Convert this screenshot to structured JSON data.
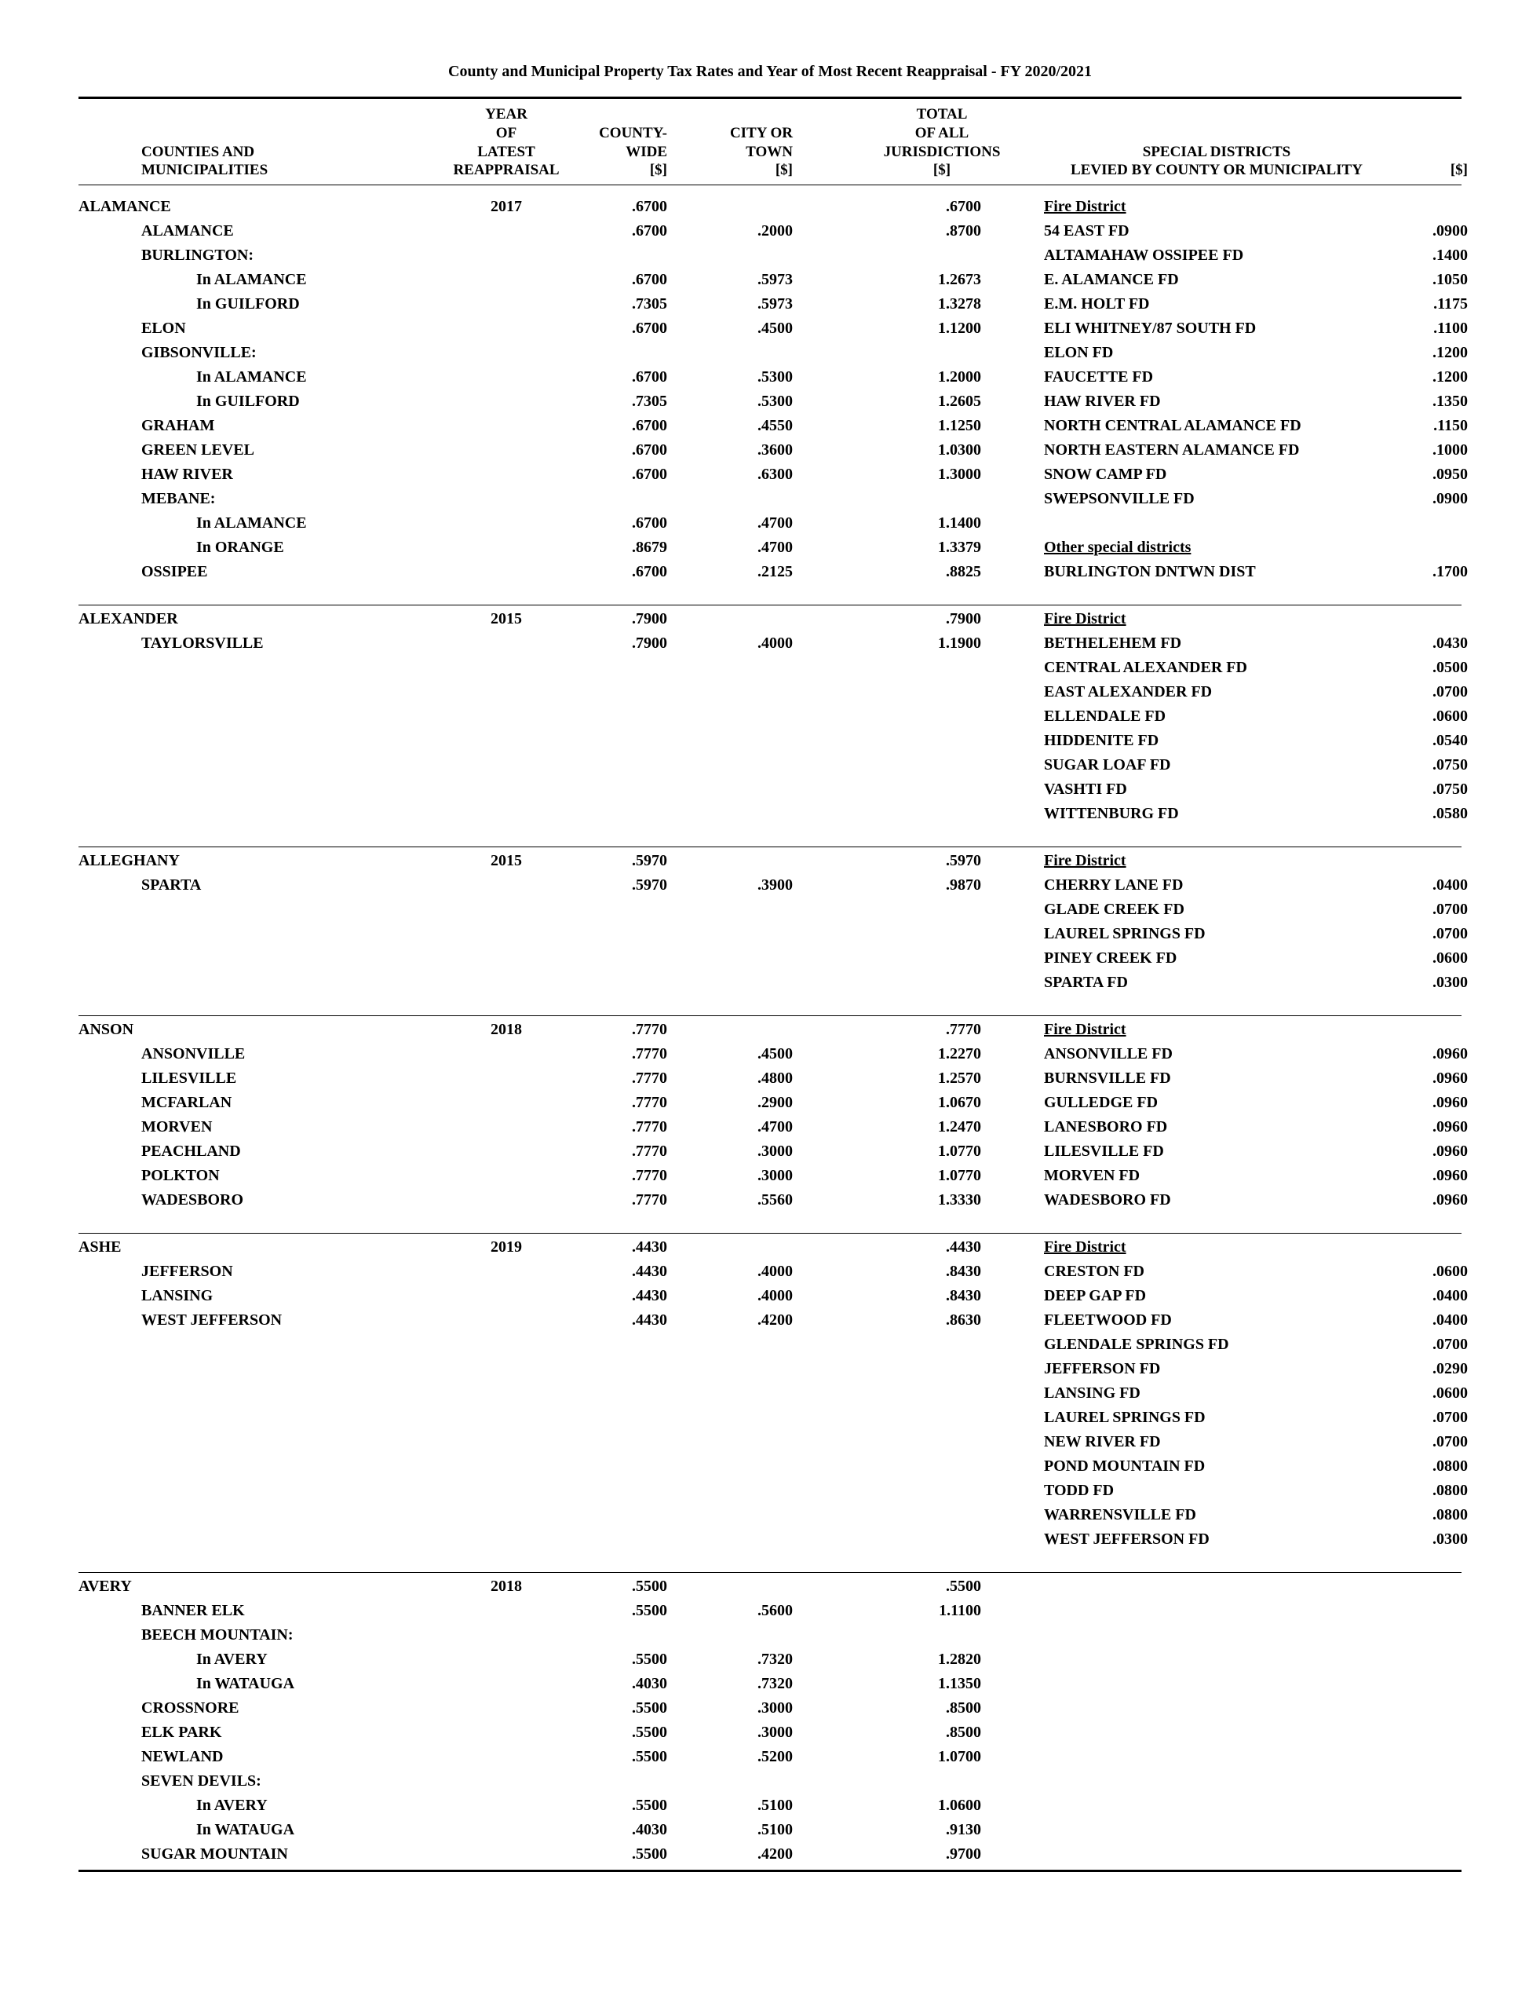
{
  "title": "County and Municipal Property Tax Rates and Year of Most Recent Reappraisal - FY 2020/2021",
  "headers": {
    "counties": "COUNTIES AND\nMUNICIPALITIES",
    "year": "YEAR\nOF\nLATEST\nREAPPRAISAL",
    "countywide": "COUNTY-\nWIDE\n[$]",
    "city": "CITY OR\nTOWN\n[$]",
    "total": "TOTAL\nOF ALL\nJURISDICTIONS\n[$]",
    "special1": "SPECIAL DISTRICTS\nLEVIED BY COUNTY OR MUNICIPALITY",
    "special2": "[$]"
  },
  "counties": [
    {
      "name": "ALAMANCE",
      "year": "2017",
      "county_rate": ".6700",
      "total": ".6700",
      "munis": [
        {
          "name": "ALAMANCE",
          "cw": ".6700",
          "ct": ".2000",
          "tot": ".8700"
        },
        {
          "name": "BURLINGTON:",
          "cw": "",
          "ct": "",
          "tot": ""
        },
        {
          "name": "In ALAMANCE",
          "indent": 1,
          "cw": ".6700",
          "ct": ".5973",
          "tot": "1.2673"
        },
        {
          "name": "In GUILFORD",
          "indent": 1,
          "cw": ".7305",
          "ct": ".5973",
          "tot": "1.3278"
        },
        {
          "name": "ELON",
          "cw": ".6700",
          "ct": ".4500",
          "tot": "1.1200"
        },
        {
          "name": "GIBSONVILLE:",
          "cw": "",
          "ct": "",
          "tot": ""
        },
        {
          "name": "In ALAMANCE",
          "indent": 1,
          "cw": ".6700",
          "ct": ".5300",
          "tot": "1.2000"
        },
        {
          "name": "In GUILFORD",
          "indent": 1,
          "cw": ".7305",
          "ct": ".5300",
          "tot": "1.2605"
        },
        {
          "name": "GRAHAM",
          "cw": ".6700",
          "ct": ".4550",
          "tot": "1.1250"
        },
        {
          "name": "GREEN LEVEL",
          "cw": ".6700",
          "ct": ".3600",
          "tot": "1.0300"
        },
        {
          "name": "HAW RIVER",
          "cw": ".6700",
          "ct": ".6300",
          "tot": "1.3000"
        },
        {
          "name": "MEBANE:",
          "cw": "",
          "ct": "",
          "tot": ""
        },
        {
          "name": "In ALAMANCE",
          "indent": 1,
          "cw": ".6700",
          "ct": ".4700",
          "tot": "1.1400"
        },
        {
          "name": "In ORANGE",
          "indent": 1,
          "cw": ".8679",
          "ct": ".4700",
          "tot": "1.3379"
        },
        {
          "name": "OSSIPEE",
          "cw": ".6700",
          "ct": ".2125",
          "tot": ".8825"
        }
      ],
      "specials": [
        {
          "name": "Fire District",
          "rate": "",
          "u": true
        },
        {
          "name": "54 EAST FD",
          "rate": ".0900"
        },
        {
          "name": "ALTAMAHAW OSSIPEE FD",
          "rate": ".1400"
        },
        {
          "name": "E. ALAMANCE FD",
          "rate": ".1050"
        },
        {
          "name": "E.M. HOLT FD",
          "rate": ".1175"
        },
        {
          "name": "ELI WHITNEY/87 SOUTH FD",
          "rate": ".1100"
        },
        {
          "name": "ELON FD",
          "rate": ".1200"
        },
        {
          "name": "FAUCETTE FD",
          "rate": ".1200"
        },
        {
          "name": "HAW RIVER FD",
          "rate": ".1350"
        },
        {
          "name": "NORTH CENTRAL ALAMANCE FD",
          "rate": ".1150"
        },
        {
          "name": "NORTH EASTERN ALAMANCE FD",
          "rate": ".1000"
        },
        {
          "name": "SNOW CAMP FD",
          "rate": ".0950"
        },
        {
          "name": "SWEPSONVILLE FD",
          "rate": ".0900"
        },
        {
          "name": "",
          "rate": ""
        },
        {
          "name": "Other special districts",
          "rate": "",
          "u": true
        },
        {
          "name": "BURLINGTON DNTWN DIST",
          "rate": ".1700"
        }
      ]
    },
    {
      "name": "ALEXANDER",
      "year": "2015",
      "county_rate": ".7900",
      "total": ".7900",
      "munis": [
        {
          "name": "TAYLORSVILLE",
          "cw": ".7900",
          "ct": ".4000",
          "tot": "1.1900"
        }
      ],
      "specials": [
        {
          "name": "Fire District",
          "rate": "",
          "u": true
        },
        {
          "name": "BETHELEHEM FD",
          "rate": ".0430"
        },
        {
          "name": "CENTRAL ALEXANDER FD",
          "rate": ".0500"
        },
        {
          "name": "EAST ALEXANDER FD",
          "rate": ".0700"
        },
        {
          "name": "ELLENDALE FD",
          "rate": ".0600"
        },
        {
          "name": "HIDDENITE FD",
          "rate": ".0540"
        },
        {
          "name": "SUGAR LOAF FD",
          "rate": ".0750"
        },
        {
          "name": "VASHTI FD",
          "rate": ".0750"
        },
        {
          "name": "WITTENBURG FD",
          "rate": ".0580"
        }
      ]
    },
    {
      "name": "ALLEGHANY",
      "year": "2015",
      "county_rate": ".5970",
      "total": ".5970",
      "munis": [
        {
          "name": "SPARTA",
          "cw": ".5970",
          "ct": ".3900",
          "tot": ".9870"
        }
      ],
      "specials": [
        {
          "name": "Fire District",
          "rate": "",
          "u": true
        },
        {
          "name": "CHERRY LANE FD",
          "rate": ".0400"
        },
        {
          "name": "GLADE CREEK FD",
          "rate": ".0700"
        },
        {
          "name": "LAUREL SPRINGS FD",
          "rate": ".0700"
        },
        {
          "name": "PINEY CREEK FD",
          "rate": ".0600"
        },
        {
          "name": "SPARTA FD",
          "rate": ".0300"
        }
      ]
    },
    {
      "name": "ANSON",
      "year": "2018",
      "county_rate": ".7770",
      "total": ".7770",
      "munis": [
        {
          "name": "ANSONVILLE",
          "cw": ".7770",
          "ct": ".4500",
          "tot": "1.2270"
        },
        {
          "name": "LILESVILLE",
          "cw": ".7770",
          "ct": ".4800",
          "tot": "1.2570"
        },
        {
          "name": "MCFARLAN",
          "cw": ".7770",
          "ct": ".2900",
          "tot": "1.0670"
        },
        {
          "name": "MORVEN",
          "cw": ".7770",
          "ct": ".4700",
          "tot": "1.2470"
        },
        {
          "name": "PEACHLAND",
          "cw": ".7770",
          "ct": ".3000",
          "tot": "1.0770"
        },
        {
          "name": "POLKTON",
          "cw": ".7770",
          "ct": ".3000",
          "tot": "1.0770"
        },
        {
          "name": "WADESBORO",
          "cw": ".7770",
          "ct": ".5560",
          "tot": "1.3330"
        }
      ],
      "specials": [
        {
          "name": "Fire District",
          "rate": "",
          "u": true
        },
        {
          "name": "ANSONVILLE FD",
          "rate": ".0960"
        },
        {
          "name": "BURNSVILLE FD",
          "rate": ".0960"
        },
        {
          "name": "GULLEDGE FD",
          "rate": ".0960"
        },
        {
          "name": "LANESBORO FD",
          "rate": ".0960"
        },
        {
          "name": "LILESVILLE FD",
          "rate": ".0960"
        },
        {
          "name": "MORVEN FD",
          "rate": ".0960"
        },
        {
          "name": "WADESBORO FD",
          "rate": ".0960"
        }
      ]
    },
    {
      "name": "ASHE",
      "year": "2019",
      "county_rate": ".4430",
      "total": ".4430",
      "munis": [
        {
          "name": "JEFFERSON",
          "cw": ".4430",
          "ct": ".4000",
          "tot": ".8430"
        },
        {
          "name": "LANSING",
          "cw": ".4430",
          "ct": ".4000",
          "tot": ".8430"
        },
        {
          "name": "WEST JEFFERSON",
          "cw": ".4430",
          "ct": ".4200",
          "tot": ".8630"
        }
      ],
      "specials": [
        {
          "name": "Fire District",
          "rate": "",
          "u": true
        },
        {
          "name": "CRESTON FD",
          "rate": ".0600"
        },
        {
          "name": "DEEP GAP FD",
          "rate": ".0400"
        },
        {
          "name": "FLEETWOOD FD",
          "rate": ".0400"
        },
        {
          "name": "GLENDALE SPRINGS FD",
          "rate": ".0700"
        },
        {
          "name": "JEFFERSON FD",
          "rate": ".0290"
        },
        {
          "name": "LANSING FD",
          "rate": ".0600"
        },
        {
          "name": "LAUREL SPRINGS FD",
          "rate": ".0700"
        },
        {
          "name": "NEW RIVER FD",
          "rate": ".0700"
        },
        {
          "name": "POND MOUNTAIN FD",
          "rate": ".0800"
        },
        {
          "name": "TODD FD",
          "rate": ".0800"
        },
        {
          "name": "WARRENSVILLE FD",
          "rate": ".0800"
        },
        {
          "name": "WEST JEFFERSON FD",
          "rate": ".0300"
        }
      ]
    },
    {
      "name": "AVERY",
      "year": "2018",
      "county_rate": ".5500",
      "total": ".5500",
      "munis": [
        {
          "name": "BANNER ELK",
          "cw": ".5500",
          "ct": ".5600",
          "tot": "1.1100"
        },
        {
          "name": "BEECH MOUNTAIN:",
          "cw": "",
          "ct": "",
          "tot": ""
        },
        {
          "name": "In AVERY",
          "indent": 1,
          "cw": ".5500",
          "ct": ".7320",
          "tot": "1.2820"
        },
        {
          "name": "In WATAUGA",
          "indent": 1,
          "cw": ".4030",
          "ct": ".7320",
          "tot": "1.1350"
        },
        {
          "name": "CROSSNORE",
          "cw": ".5500",
          "ct": ".3000",
          "tot": ".8500"
        },
        {
          "name": "ELK PARK",
          "cw": ".5500",
          "ct": ".3000",
          "tot": ".8500"
        },
        {
          "name": "NEWLAND",
          "cw": ".5500",
          "ct": ".5200",
          "tot": "1.0700"
        },
        {
          "name": "SEVEN DEVILS:",
          "cw": "",
          "ct": "",
          "tot": ""
        },
        {
          "name": "In AVERY",
          "indent": 1,
          "cw": ".5500",
          "ct": ".5100",
          "tot": "1.0600"
        },
        {
          "name": "In WATAUGA",
          "indent": 1,
          "cw": ".4030",
          "ct": ".5100",
          "tot": ".9130"
        },
        {
          "name": "SUGAR MOUNTAIN",
          "cw": ".5500",
          "ct": ".4200",
          "tot": ".9700"
        }
      ],
      "specials": []
    }
  ]
}
